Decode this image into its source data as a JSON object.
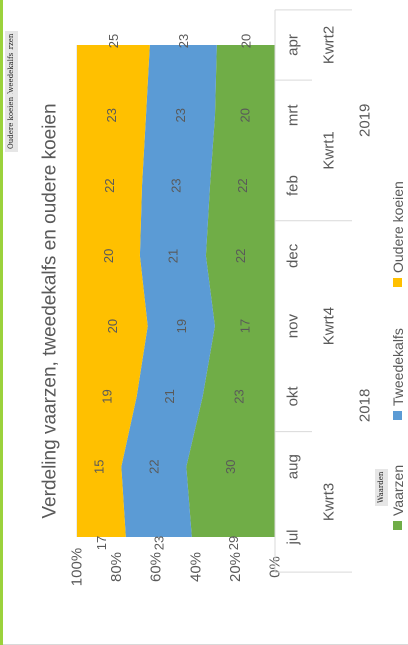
{
  "field_buttons": {
    "filters": [
      "Vaarzen",
      "Tweedekalfs",
      "Oudere koeien"
    ],
    "values": "Waarden"
  },
  "colors": {
    "vaarzen": "#70ad47",
    "tweedekalfs": "#5b9bd5",
    "oudere": "#ffc000",
    "grid": "#d9d9d9",
    "text": "#595959"
  },
  "chart_data": {
    "type": "area",
    "stacked": "percent",
    "title": "Verdeling vaarzen, tweedekalfs en oudere koeien",
    "categories": [
      "jul",
      "aug",
      "okt",
      "nov",
      "dec",
      "feb",
      "mrt",
      "apr"
    ],
    "quarters": [
      {
        "label": "Kwrt3",
        "span": [
          0,
          1
        ]
      },
      {
        "label": "Kwrt4",
        "span": [
          2,
          4
        ]
      },
      {
        "label": "Kwrt1",
        "span": [
          5,
          6
        ]
      },
      {
        "label": "Kwrt2",
        "span": [
          7,
          7
        ]
      }
    ],
    "years": [
      {
        "label": "2018",
        "span": [
          0,
          4
        ]
      },
      {
        "label": "2019",
        "span": [
          5,
          7
        ]
      }
    ],
    "series": [
      {
        "name": "Vaarzen",
        "values": [
          29,
          30,
          23,
          17,
          22,
          22,
          20,
          20
        ]
      },
      {
        "name": "Tweedekalfs",
        "values": [
          23,
          22,
          21,
          19,
          21,
          23,
          23,
          23
        ]
      },
      {
        "name": "Oudere koeien",
        "values": [
          17,
          15,
          19,
          20,
          20,
          22,
          23,
          25
        ]
      }
    ],
    "y_ticks": [
      "0%",
      "20%",
      "40%",
      "60%",
      "80%",
      "100%"
    ],
    "ylim": [
      0,
      100
    ],
    "grid": true,
    "legend": "bottom"
  }
}
